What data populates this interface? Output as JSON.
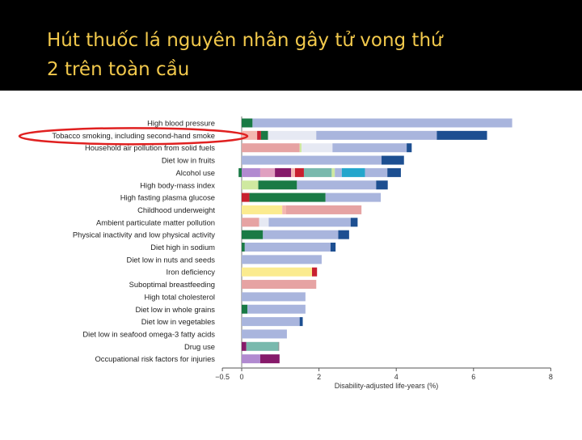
{
  "slide": {
    "title_line1": "Hút thuốc lá nguyên nhân gây tử vong thứ",
    "title_line2": "2 trên toàn cầu"
  },
  "colors": {
    "title": "#f2c94c",
    "highlight_ellipse": "#e02020",
    "segments": {
      "dkgreen": "#1a7a45",
      "crimson": "#c8202f",
      "peach": "#f4b7b0",
      "dustyrose": "#e6a3a3",
      "lightgray": "#e6e9f3",
      "lavender": "#a9b5dd",
      "navy": "#1d4f91",
      "lime": "#cfe9a0",
      "purple": "#b18ad0",
      "plum": "#861a6a",
      "pink": "#e0a0c0",
      "teal": "#79b9ad",
      "cyan": "#24a6cc",
      "yellow": "#fbeb8f",
      "slate": "#888888"
    }
  },
  "chart_data": {
    "type": "bar",
    "orientation": "horizontal",
    "stacked": true,
    "xlabel": "Disability-adjusted life-years (%)",
    "xlim": [
      -0.5,
      8
    ],
    "xticks": [
      "−0.5",
      "0",
      "2",
      "4",
      "6",
      "8"
    ],
    "xtick_values": [
      -0.5,
      0,
      2,
      4,
      6,
      8
    ],
    "highlighted_category": "Tobacco smoking, including second-hand smoke",
    "categories": [
      "High blood pressure",
      "Tobacco smoking, including second-hand smoke",
      "Household air pollution from solid fuels",
      "Diet low in fruits",
      "Alcohol use",
      "High body-mass index",
      "High fasting plasma glucose",
      "Childhood underweight",
      "Ambient particulate matter pollution",
      "Physical inactivity and low physical activity",
      "Diet high in sodium",
      "Diet low in nuts and seeds",
      "Iron deficiency",
      "Suboptimal breastfeeding",
      "High total cholesterol",
      "Diet low in whole grains",
      "Diet low in vegetables",
      "Diet low in seafood omega-3 fatty acids",
      "Drug use",
      "Occupational risk factors for injuries"
    ],
    "bars": [
      {
        "segments": [
          {
            "c": "dkgreen",
            "v": 0.28
          },
          {
            "c": "lavender",
            "v": 6.72
          }
        ]
      },
      {
        "segments": [
          {
            "c": "peach",
            "v": 0.4
          },
          {
            "c": "crimson",
            "v": 0.1
          },
          {
            "c": "dkgreen",
            "v": 0.18
          },
          {
            "c": "lightgray",
            "v": 1.25
          },
          {
            "c": "lavender",
            "v": 3.12
          },
          {
            "c": "navy",
            "v": 1.3
          }
        ]
      },
      {
        "segments": [
          {
            "c": "dustyrose",
            "v": 1.5
          },
          {
            "c": "lime",
            "v": 0.05
          },
          {
            "c": "lightgray",
            "v": 0.8
          },
          {
            "c": "lavender",
            "v": 1.92
          },
          {
            "c": "navy",
            "v": 0.13
          }
        ]
      },
      {
        "segments": [
          {
            "c": "lavender",
            "v": 3.62
          },
          {
            "c": "navy",
            "v": 0.58
          }
        ]
      },
      {
        "neg": 0.08,
        "segments": [
          {
            "c": "purple",
            "v": 0.48
          },
          {
            "c": "pink",
            "v": 0.38
          },
          {
            "c": "plum",
            "v": 0.42
          },
          {
            "c": "peach",
            "v": 0.1
          },
          {
            "c": "crimson",
            "v": 0.23
          },
          {
            "c": "teal",
            "v": 0.72
          },
          {
            "c": "lime",
            "v": 0.08
          },
          {
            "c": "lavender",
            "v": 0.18
          },
          {
            "c": "cyan",
            "v": 0.6
          },
          {
            "c": "lavender",
            "v": 0.58
          },
          {
            "c": "navy",
            "v": 0.35
          }
        ]
      },
      {
        "segments": [
          {
            "c": "lime",
            "v": 0.43
          },
          {
            "c": "dkgreen",
            "v": 1.0
          },
          {
            "c": "lavender",
            "v": 2.05
          },
          {
            "c": "navy",
            "v": 0.3
          }
        ]
      },
      {
        "segments": [
          {
            "c": "crimson",
            "v": 0.2
          },
          {
            "c": "dkgreen",
            "v": 1.97
          },
          {
            "c": "lavender",
            "v": 1.43
          }
        ]
      },
      {
        "segments": [
          {
            "c": "yellow",
            "v": 1.05
          },
          {
            "c": "peach",
            "v": 0.1
          },
          {
            "c": "dustyrose",
            "v": 1.95
          }
        ]
      },
      {
        "segments": [
          {
            "c": "dustyrose",
            "v": 0.45
          },
          {
            "c": "lightgray",
            "v": 0.25
          },
          {
            "c": "lavender",
            "v": 2.12
          },
          {
            "c": "navy",
            "v": 0.18
          }
        ]
      },
      {
        "segments": [
          {
            "c": "dkgreen",
            "v": 0.55
          },
          {
            "c": "lavender",
            "v": 1.95
          },
          {
            "c": "navy",
            "v": 0.28
          }
        ]
      },
      {
        "segments": [
          {
            "c": "dkgreen",
            "v": 0.08
          },
          {
            "c": "lavender",
            "v": 2.22
          },
          {
            "c": "navy",
            "v": 0.13
          }
        ]
      },
      {
        "segments": [
          {
            "c": "lavender",
            "v": 2.07
          }
        ]
      },
      {
        "segments": [
          {
            "c": "yellow",
            "v": 1.82
          },
          {
            "c": "crimson",
            "v": 0.13
          }
        ]
      },
      {
        "segments": [
          {
            "c": "dustyrose",
            "v": 1.93
          }
        ]
      },
      {
        "segments": [
          {
            "c": "lavender",
            "v": 1.65
          }
        ]
      },
      {
        "segments": [
          {
            "c": "dkgreen",
            "v": 0.15
          },
          {
            "c": "lavender",
            "v": 1.5
          }
        ]
      },
      {
        "segments": [
          {
            "c": "lavender",
            "v": 1.5
          },
          {
            "c": "navy",
            "v": 0.08
          }
        ]
      },
      {
        "segments": [
          {
            "c": "lavender",
            "v": 1.17
          }
        ]
      },
      {
        "segments": [
          {
            "c": "plum",
            "v": 0.12
          },
          {
            "c": "teal",
            "v": 0.83
          },
          {
            "c": "slate",
            "v": 0.02
          }
        ]
      },
      {
        "segments": [
          {
            "c": "purple",
            "v": 0.48
          },
          {
            "c": "plum",
            "v": 0.5
          }
        ]
      }
    ]
  }
}
